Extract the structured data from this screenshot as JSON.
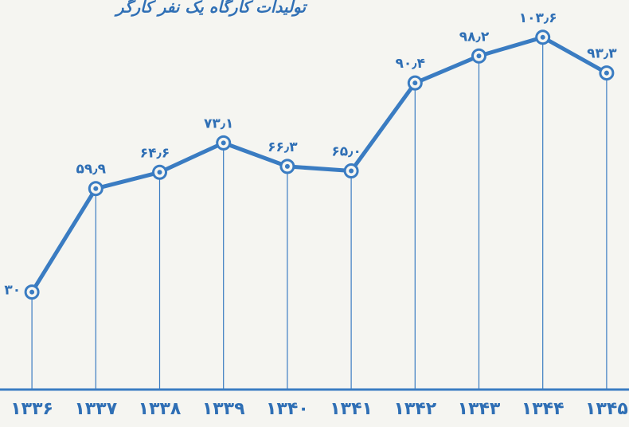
{
  "chart_data": {
    "type": "line",
    "title": "تولیدات کارگاه یک نفر کارگر",
    "categories": [
      "۱۳۳۶",
      "۱۳۳۷",
      "۱۳۳۸",
      "۱۳۳۹",
      "۱۳۴۰",
      "۱۳۴۱",
      "۱۳۴۲",
      "۱۳۴۳",
      "۱۳۴۴",
      "۱۳۴۵"
    ],
    "values": [
      30,
      59.9,
      64.6,
      73.1,
      66.3,
      65.0,
      90.4,
      98.2,
      103.6,
      93.3
    ],
    "value_labels": [
      "۳۰",
      "۵۹٫۹",
      "۶۴٫۶",
      "۷۳٫۱",
      "۶۶٫۳",
      "۶۵٫۰",
      "۹۰٫۴",
      "۹۸٫۲",
      "۱۰۳٫۶",
      "۹۳٫۳"
    ],
    "color": "#3a7cc2",
    "ylim": [
      0,
      110
    ]
  }
}
